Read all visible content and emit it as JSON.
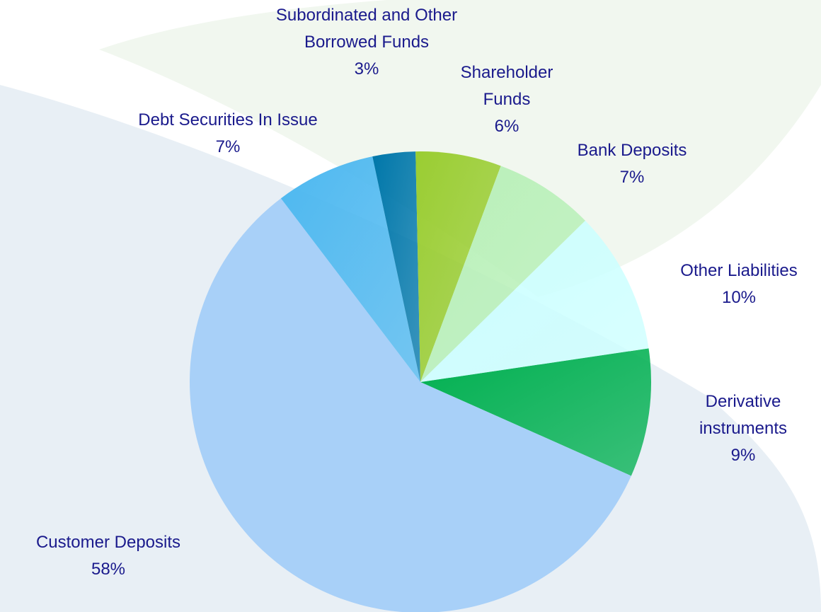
{
  "chart_data": {
    "type": "pie",
    "categories": [
      "Derivative instruments",
      "Customer Deposits",
      "Debt Securities In Issue",
      "Subordinated and Other Borrowed Funds",
      "Shareholder Funds",
      "Bank Deposits",
      "Other Liabilities"
    ],
    "values": [
      9,
      58,
      7,
      3,
      6,
      7,
      10
    ],
    "value_labels": [
      "9%",
      "58%",
      "7%",
      "3%",
      "6%",
      "7%",
      "10%"
    ],
    "colors": [
      "#00b050",
      "#a8d0f8",
      "#4db8f0",
      "#0077aa",
      "#9acd32",
      "#b8f0b8",
      "#ccffff"
    ]
  }
}
